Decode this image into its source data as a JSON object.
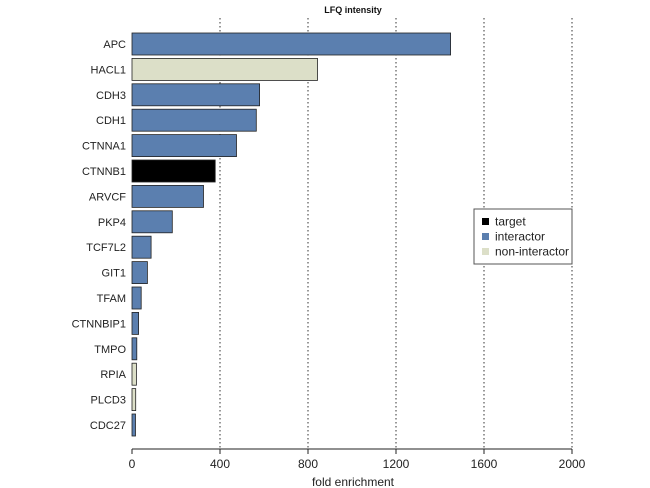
{
  "chart_data": {
    "type": "bar",
    "orientation": "horizontal",
    "title": "LFQ intensity",
    "xlabel": "fold enrichment",
    "ylabel": "",
    "xlim": [
      0,
      2000
    ],
    "xticks": [
      0,
      400,
      800,
      1200,
      1600,
      2000
    ],
    "grid": "vertical dotted",
    "legend_position": "right",
    "categories": [
      "APC",
      "HACL1",
      "CDH3",
      "CDH1",
      "CTNNA1",
      "CTNNB1",
      "ARVCF",
      "PKP4",
      "TCF7L2",
      "GIT1",
      "TFAM",
      "CTNNBIP1",
      "TMPO",
      "RPIA",
      "PLCD3",
      "CDC27"
    ],
    "values": [
      1448,
      843,
      580,
      565,
      475,
      378,
      325,
      183,
      87,
      70,
      42,
      30,
      22,
      20,
      17,
      16
    ],
    "groups": [
      "interactor",
      "non-interactor",
      "interactor",
      "interactor",
      "interactor",
      "target",
      "interactor",
      "interactor",
      "interactor",
      "interactor",
      "interactor",
      "interactor",
      "interactor",
      "non-interactor",
      "non-interactor",
      "interactor"
    ],
    "legend": [
      {
        "key": "target",
        "label": "target",
        "color": "#000000"
      },
      {
        "key": "interactor",
        "label": "interactor",
        "color": "#5b7faf"
      },
      {
        "key": "non-interactor",
        "label": "non-interactor",
        "color": "#dcdfc8"
      }
    ]
  }
}
